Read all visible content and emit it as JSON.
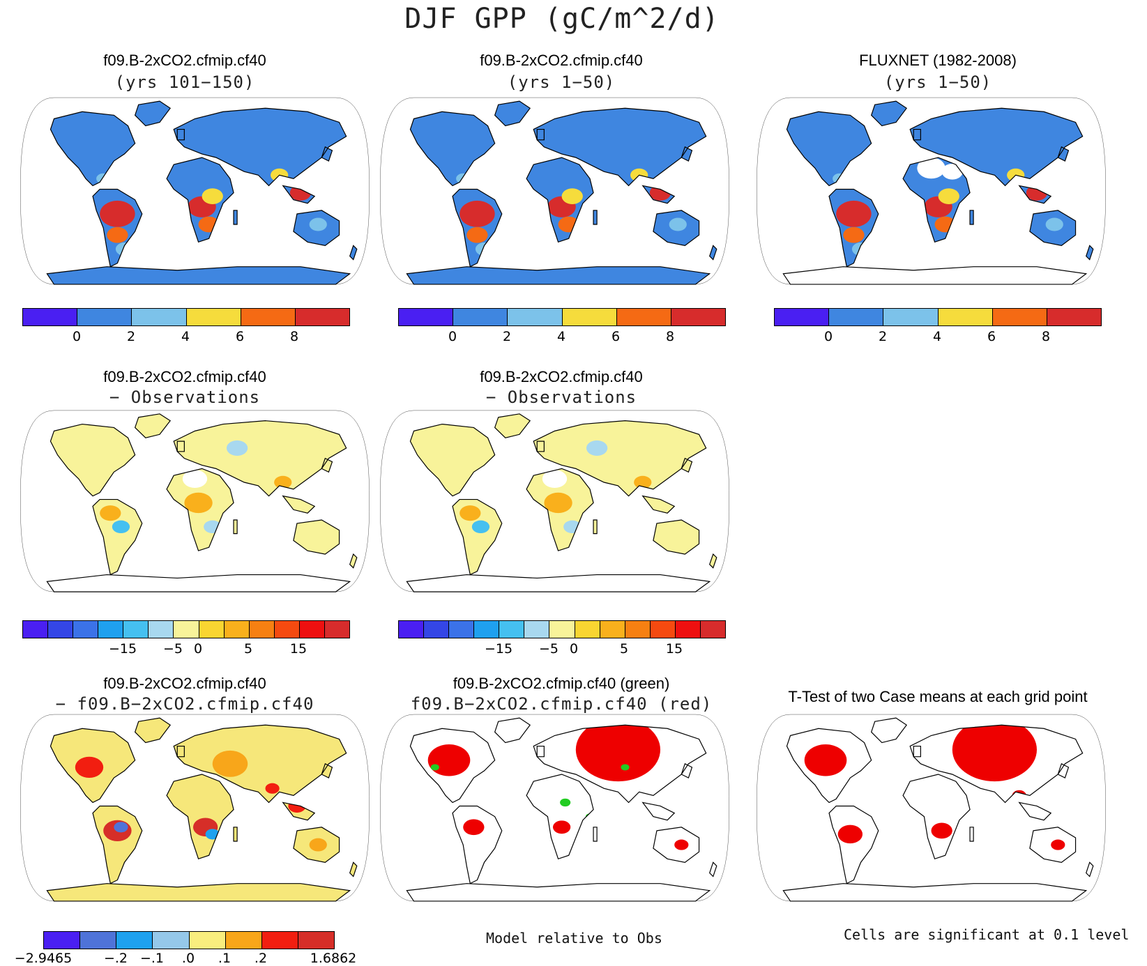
{
  "title": "DJF GPP (gC/m^2/d)",
  "panels": [
    {
      "title1": "f09.B-2xCO2.cfmip.cf40",
      "title2": "(yrs 101−150)",
      "style": "model",
      "antarctic": "#3f86e0"
    },
    {
      "title1": "f09.B-2xCO2.cfmip.cf40",
      "title2": "(yrs 1−50)",
      "style": "model",
      "antarctic": "#3f86e0"
    },
    {
      "title1": "FLUXNET (1982-2008)",
      "title2": "(yrs 1−50)",
      "style": "obs",
      "antarctic": "none"
    },
    {
      "title1": "f09.B-2xCO2.cfmip.cf40",
      "title2": "− Observations",
      "style": "diff",
      "antarctic": "none"
    },
    {
      "title1": "f09.B-2xCO2.cfmip.cf40",
      "title2": "− Observations",
      "style": "diff",
      "antarctic": "none"
    },
    {
      "title1": "f09.B-2xCO2.cfmip.cf40",
      "title2": "− f09.B−2xCO2.cfmip.cf40",
      "style": "casediff",
      "antarctic": "#f6e77a"
    },
    {
      "title1": "f09.B-2xCO2.cfmip.cf40 (green)",
      "title2": "f09.B−2xCO2.cfmip.cf40 (red)",
      "style": "redgreen",
      "antarctic": "none"
    },
    {
      "title1": "T-Test of two Case means at each grid point",
      "title2": "",
      "style": "ttest",
      "antarctic": "none"
    }
  ],
  "colorbars": {
    "abs": {
      "colors": [
        "#4a1ff2",
        "#3f86e0",
        "#7cc2ea",
        "#f6dc3c",
        "#f56a14",
        "#d72c2c"
      ],
      "ticks": [
        "0",
        "2",
        "4",
        "6",
        "8"
      ]
    },
    "diff": {
      "colors": [
        "#4a1ff2",
        "#3446e6",
        "#3b72e8",
        "#1fa0ef",
        "#45c0f0",
        "#a8d8ef",
        "#f8f39a",
        "#f9d531",
        "#f9b01c",
        "#f68012",
        "#f54a10",
        "#ee1010",
        "#d72c2c"
      ],
      "ticks": [
        "−15",
        "−5",
        "0",
        "5",
        "15"
      ]
    },
    "casediff": {
      "colors": [
        "#4a1ff2",
        "#4f73d8",
        "#1ea1ef",
        "#95c8ea",
        "#f9ee7e",
        "#f8a61a",
        "#f21e10",
        "#d62e28"
      ],
      "ticks": [
        "−2.9465",
        "−.2",
        "−.1",
        ".0",
        ".1",
        ".2",
        "1.6862"
      ]
    }
  },
  "notes": {
    "model_rel": "Model relative to Obs",
    "signif": "Cells are significant at 0.1 level"
  }
}
